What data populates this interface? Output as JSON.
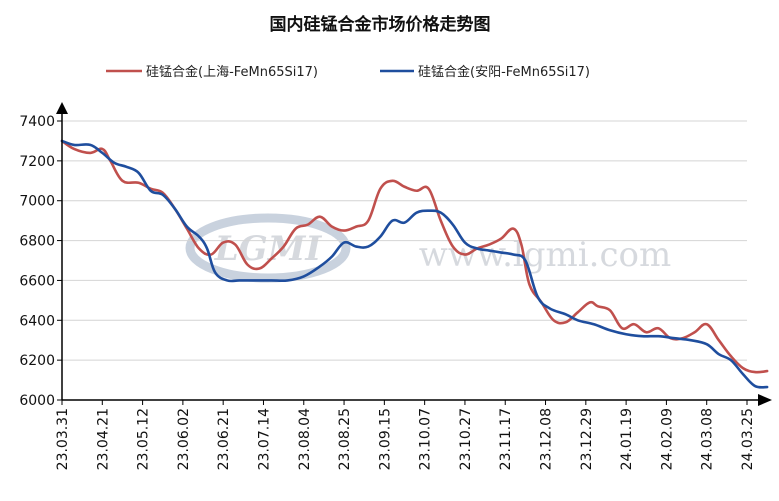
{
  "colors": {
    "shanghai": "#c0504d",
    "anyang": "#1f4e9e",
    "watermark": "#c9cdd3"
  },
  "chart_data": {
    "type": "line",
    "title": "国内硅锰合金市场价格走势图",
    "legend_position": "top-center",
    "grid": true,
    "ylim": [
      6000,
      7400
    ],
    "yticks": [
      6000,
      6200,
      6400,
      6600,
      6800,
      7000,
      7200,
      7400
    ],
    "x_tick_labels": [
      "23.03.31",
      "23.04.21",
      "23.05.12",
      "23.06.02",
      "23.06.21",
      "23.07.14",
      "23.08.04",
      "23.08.25",
      "23.09.15",
      "23.10.07",
      "23.10.27",
      "23.11.17",
      "23.12.08",
      "23.12.29",
      "24.01.19",
      "24.02.09",
      "24.03.08",
      "24.03.25"
    ],
    "watermark": {
      "logo": "LGMI",
      "text": "www.lgmi.com"
    },
    "series": [
      {
        "name": "硅锰合金(上海-FeMn65Si17)",
        "color_key": "shanghai",
        "points": [
          [
            0,
            7300
          ],
          [
            0.3,
            7260
          ],
          [
            0.7,
            7240
          ],
          [
            1.0,
            7260
          ],
          [
            1.2,
            7200
          ],
          [
            1.5,
            7100
          ],
          [
            1.9,
            7090
          ],
          [
            2.2,
            7060
          ],
          [
            2.5,
            7040
          ],
          [
            2.8,
            6960
          ],
          [
            3.1,
            6860
          ],
          [
            3.4,
            6760
          ],
          [
            3.7,
            6730
          ],
          [
            4.0,
            6790
          ],
          [
            4.3,
            6780
          ],
          [
            4.6,
            6680
          ],
          [
            4.9,
            6660
          ],
          [
            5.2,
            6710
          ],
          [
            5.5,
            6770
          ],
          [
            5.8,
            6860
          ],
          [
            6.1,
            6880
          ],
          [
            6.4,
            6920
          ],
          [
            6.7,
            6870
          ],
          [
            7.0,
            6850
          ],
          [
            7.3,
            6870
          ],
          [
            7.6,
            6900
          ],
          [
            7.9,
            7060
          ],
          [
            8.2,
            7100
          ],
          [
            8.5,
            7070
          ],
          [
            8.8,
            7050
          ],
          [
            9.1,
            7060
          ],
          [
            9.4,
            6900
          ],
          [
            9.7,
            6770
          ],
          [
            10.0,
            6730
          ],
          [
            10.3,
            6760
          ],
          [
            10.6,
            6780
          ],
          [
            10.9,
            6810
          ],
          [
            11.2,
            6860
          ],
          [
            11.4,
            6780
          ],
          [
            11.6,
            6580
          ],
          [
            11.9,
            6490
          ],
          [
            12.2,
            6400
          ],
          [
            12.5,
            6390
          ],
          [
            12.8,
            6440
          ],
          [
            13.1,
            6490
          ],
          [
            13.3,
            6470
          ],
          [
            13.6,
            6450
          ],
          [
            13.9,
            6360
          ],
          [
            14.2,
            6380
          ],
          [
            14.5,
            6340
          ],
          [
            14.8,
            6360
          ],
          [
            15.1,
            6310
          ],
          [
            15.4,
            6310
          ],
          [
            15.7,
            6340
          ],
          [
            16.0,
            6380
          ],
          [
            16.3,
            6300
          ],
          [
            16.6,
            6220
          ],
          [
            16.9,
            6160
          ],
          [
            17.2,
            6140
          ],
          [
            17.5,
            6145
          ]
        ]
      },
      {
        "name": "硅锰合金(安阳-FeMn65Si17)",
        "color_key": "anyang",
        "points": [
          [
            0,
            7300
          ],
          [
            0.3,
            7280
          ],
          [
            0.7,
            7280
          ],
          [
            1.0,
            7240
          ],
          [
            1.3,
            7190
          ],
          [
            1.6,
            7170
          ],
          [
            1.9,
            7140
          ],
          [
            2.2,
            7050
          ],
          [
            2.5,
            7030
          ],
          [
            2.8,
            6960
          ],
          [
            3.1,
            6870
          ],
          [
            3.4,
            6820
          ],
          [
            3.6,
            6760
          ],
          [
            3.8,
            6640
          ],
          [
            4.1,
            6600
          ],
          [
            4.4,
            6600
          ],
          [
            4.8,
            6600
          ],
          [
            5.2,
            6600
          ],
          [
            5.6,
            6600
          ],
          [
            6.0,
            6620
          ],
          [
            6.4,
            6670
          ],
          [
            6.7,
            6720
          ],
          [
            7.0,
            6790
          ],
          [
            7.3,
            6770
          ],
          [
            7.6,
            6770
          ],
          [
            7.9,
            6820
          ],
          [
            8.2,
            6900
          ],
          [
            8.5,
            6890
          ],
          [
            8.8,
            6940
          ],
          [
            9.1,
            6950
          ],
          [
            9.4,
            6940
          ],
          [
            9.7,
            6880
          ],
          [
            10.0,
            6790
          ],
          [
            10.3,
            6760
          ],
          [
            10.6,
            6750
          ],
          [
            10.9,
            6740
          ],
          [
            11.2,
            6730
          ],
          [
            11.5,
            6700
          ],
          [
            11.8,
            6520
          ],
          [
            12.1,
            6460
          ],
          [
            12.5,
            6430
          ],
          [
            12.8,
            6400
          ],
          [
            13.2,
            6380
          ],
          [
            13.6,
            6350
          ],
          [
            14.0,
            6330
          ],
          [
            14.4,
            6320
          ],
          [
            14.8,
            6320
          ],
          [
            15.2,
            6310
          ],
          [
            15.6,
            6300
          ],
          [
            16.0,
            6280
          ],
          [
            16.3,
            6230
          ],
          [
            16.6,
            6200
          ],
          [
            16.9,
            6130
          ],
          [
            17.2,
            6070
          ],
          [
            17.5,
            6065
          ]
        ]
      }
    ]
  }
}
